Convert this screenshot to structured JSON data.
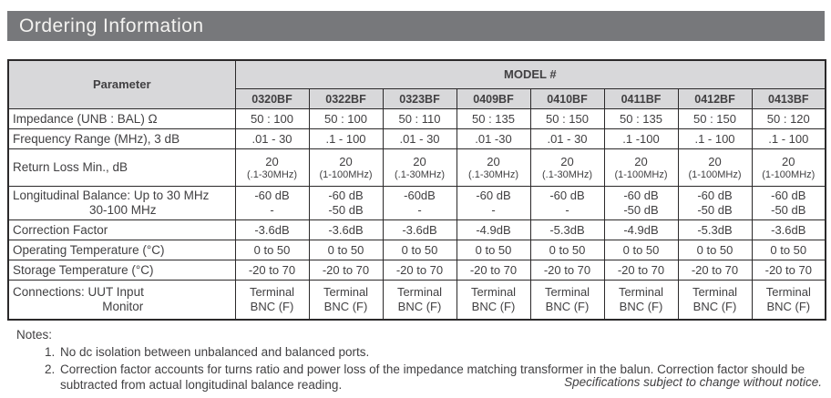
{
  "page": {
    "title": "Ordering Information",
    "title_bar_bg": "#77787b",
    "title_color": "#f4f3f1",
    "header_cell_bg": "#d8d8da",
    "border_color": "#2b292a"
  },
  "table": {
    "param_header": "Parameter",
    "model_group_header": "MODEL #",
    "models": [
      "0320BF",
      "0322BF",
      "0323BF",
      "0409BF",
      "0410BF",
      "0411BF",
      "0412BF",
      "0413BF"
    ],
    "rows": [
      {
        "id": "impedance",
        "label_lines": [
          "Impedance (UNB : BAL) Ω"
        ],
        "cells": [
          [
            "50 : 100"
          ],
          [
            "50 : 100"
          ],
          [
            "50 : 110"
          ],
          [
            "50 : 135"
          ],
          [
            "50 : 150"
          ],
          [
            "50 : 135"
          ],
          [
            "50 : 150"
          ],
          [
            "50 : 120"
          ]
        ]
      },
      {
        "id": "frequency-range",
        "label_lines": [
          "Frequency Range (MHz), 3 dB"
        ],
        "cells": [
          [
            ".01 - 30"
          ],
          [
            ".1 - 100"
          ],
          [
            ".01 - 30"
          ],
          [
            ".01 -30"
          ],
          [
            ".01 - 30"
          ],
          [
            ".1 -100"
          ],
          [
            ".1 - 100"
          ],
          [
            ".1 - 100"
          ]
        ]
      },
      {
        "id": "return-loss",
        "label_lines": [
          "Return Loss Min., dB"
        ],
        "small_second_line": true,
        "cells": [
          [
            "20",
            "(.1-30MHz)"
          ],
          [
            "20",
            "(1-100MHz)"
          ],
          [
            "20",
            "(.1-30MHz)"
          ],
          [
            "20",
            "(.1-30MHz)"
          ],
          [
            "20",
            "(.1-30MHz)"
          ],
          [
            "20",
            "(1-100MHz)"
          ],
          [
            "20",
            "(1-100MHz)"
          ],
          [
            "20",
            "(1-100MHz)"
          ]
        ]
      },
      {
        "id": "longitudinal",
        "label_lines": [
          "Longitudinal Balance: Up to 30 MHz",
          "30-100 MHz"
        ],
        "cells": [
          [
            "-60 dB",
            "-"
          ],
          [
            "-60 dB",
            "-50 dB"
          ],
          [
            "-60dB",
            "-"
          ],
          [
            "-60 dB",
            "-"
          ],
          [
            "-60 dB",
            "-"
          ],
          [
            "-60 dB",
            "-50 dB"
          ],
          [
            "-60 dB",
            "-50 dB"
          ],
          [
            "-60 dB",
            "-50 dB"
          ]
        ]
      },
      {
        "id": "correction-factor",
        "label_lines": [
          "Correction Factor"
        ],
        "cells": [
          [
            "-3.6dB"
          ],
          [
            "-3.6dB"
          ],
          [
            "-3.6dB"
          ],
          [
            "-4.9dB"
          ],
          [
            "-5.3dB"
          ],
          [
            "-4.9dB"
          ],
          [
            "-5.3dB"
          ],
          [
            "-3.6dB"
          ]
        ]
      },
      {
        "id": "operating-temperature",
        "label_lines": [
          "Operating Temperature (°C)"
        ],
        "cells": [
          [
            "0 to 50"
          ],
          [
            "0 to 50"
          ],
          [
            "0 to 50"
          ],
          [
            "0 to 50"
          ],
          [
            "0 to 50"
          ],
          [
            "0 to 50"
          ],
          [
            "0 to 50"
          ],
          [
            "0 to 50"
          ]
        ]
      },
      {
        "id": "storage-temperature",
        "label_lines": [
          "Storage Temperature (°C)"
        ],
        "cells": [
          [
            "-20 to 70"
          ],
          [
            "-20 to 70"
          ],
          [
            "-20 to 70"
          ],
          [
            "-20 to 70"
          ],
          [
            "-20 to 70"
          ],
          [
            "-20 to 70"
          ],
          [
            "-20 to 70"
          ],
          [
            "-20 to 70"
          ]
        ]
      },
      {
        "id": "connections",
        "label_lines": [
          "Connections:  UUT Input",
          "Monitor"
        ],
        "cells": [
          [
            "Terminal",
            "BNC (F)"
          ],
          [
            "Terminal",
            "BNC (F)"
          ],
          [
            "Terminal",
            "BNC (F)"
          ],
          [
            "Terminal",
            "BNC (F)"
          ],
          [
            "Terminal",
            "BNC (F)"
          ],
          [
            "Terminal",
            "BNC (F)"
          ],
          [
            "Terminal",
            "BNC (F)"
          ],
          [
            "Terminal",
            "BNC (F)"
          ]
        ]
      }
    ]
  },
  "notes": {
    "heading": "Notes:",
    "items": [
      "No dc isolation between unbalanced and balanced ports.",
      "Correction factor accounts for turns ratio and power loss of the impedance matching transformer in the balun. Correction factor should be subtracted from actual longitudinal balance reading."
    ]
  },
  "footer": {
    "disclaimer": "Specifications subject to change without notice."
  }
}
